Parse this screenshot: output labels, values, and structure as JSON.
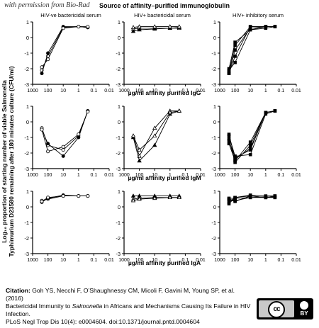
{
  "watermark": "with permission from Bio-Rad",
  "figure": {
    "super_title": "Source of  affinity–purified  immunoglobulin",
    "y_label_top": "Log₁₀ proportion of starting number of viable Salmonella",
    "y_label_bottom": "Typhimurium D23580 remaining after 180 minutes culture (CFU/ml)",
    "column_titles": [
      "HIV-ve bactericidal serum",
      "HIV+ bactericidal serum",
      "HIV+ inhibitory serum"
    ],
    "row_xlabels": [
      "µg/ml affinity purified IgG",
      "µg/ml affinity purified IgM",
      "µg/ml affinity purified IgA"
    ],
    "x_tick_labels": [
      "1000",
      "100",
      "10",
      "1",
      "0.1",
      "0.01"
    ],
    "y_tick_labels": [
      "1",
      "0",
      "-1",
      "-2",
      "-3"
    ]
  },
  "chart_data": {
    "type": "line",
    "x_scale": "log-reversed",
    "xlim": [
      1000,
      0.01
    ],
    "ylim": [
      -3,
      1
    ],
    "x": [
      250,
      100,
      10,
      1,
      0.25
    ],
    "panels": [
      {
        "row": 0,
        "col": 0,
        "marker": "circle",
        "series": [
          [
            -2.1,
            -1.2,
            0.65,
            0.7,
            0.65
          ],
          [
            -2.3,
            -1.0,
            0.7,
            0.7,
            0.65
          ],
          [
            -1.9,
            -1.4,
            0.6,
            0.7,
            0.7
          ]
        ]
      },
      {
        "row": 0,
        "col": 1,
        "marker": "triangle",
        "series": [
          [
            0.55,
            0.6,
            0.6,
            0.6,
            0.6
          ],
          [
            0.4,
            0.5,
            0.55,
            0.6,
            0.65
          ],
          [
            0.65,
            0.7,
            0.7,
            0.7,
            0.7
          ]
        ]
      },
      {
        "row": 0,
        "col": 2,
        "marker": "square",
        "series": [
          [
            -2.3,
            -1.2,
            0.7,
            0.7,
            0.7
          ],
          [
            -2.2,
            -0.5,
            0.7,
            0.7,
            0.7
          ],
          [
            -2.3,
            -0.8,
            0.6,
            0.7,
            0.7
          ],
          [
            -2.1,
            -1.6,
            0.5,
            0.7,
            0.7
          ],
          [
            -2.0,
            -0.3,
            0.5,
            0.6,
            0.7
          ]
        ]
      },
      {
        "row": 1,
        "col": 0,
        "marker": "circle",
        "series": [
          [
            -0.4,
            -1.5,
            -1.8,
            -0.9,
            0.7
          ],
          [
            -0.5,
            -1.4,
            -2.2,
            -1.0,
            0.7
          ],
          [
            -0.5,
            -1.9,
            -1.6,
            -0.8,
            0.65
          ]
        ]
      },
      {
        "row": 1,
        "col": 1,
        "marker": "triangle",
        "series": [
          [
            -0.9,
            -2.2,
            -0.4,
            0.7,
            0.7
          ],
          [
            -1.0,
            -2.5,
            -1.5,
            0.5,
            0.7
          ],
          [
            -0.9,
            -1.8,
            -0.9,
            0.6,
            0.7
          ]
        ]
      },
      {
        "row": 1,
        "col": 2,
        "marker": "square",
        "series": [
          [
            -0.8,
            -2.4,
            -1.7,
            0.6,
            0.7
          ],
          [
            -1.2,
            -2.3,
            -1.8,
            0.6,
            0.7
          ],
          [
            -1.4,
            -2.5,
            -1.3,
            0.6,
            0.7
          ],
          [
            -0.9,
            -2.2,
            -2.1,
            0.5,
            0.7
          ],
          [
            -1.1,
            -2.6,
            -1.5,
            0.6,
            0.7
          ]
        ]
      },
      {
        "row": 2,
        "col": 0,
        "marker": "circle",
        "series": [
          [
            0.4,
            0.5,
            0.7,
            0.7,
            0.7
          ],
          [
            0.3,
            0.55,
            0.75,
            0.7,
            0.7
          ],
          [
            0.35,
            0.6,
            0.7,
            0.7,
            0.7
          ]
        ]
      },
      {
        "row": 2,
        "col": 1,
        "marker": "triangle",
        "series": [
          [
            0.5,
            0.55,
            0.6,
            0.6,
            0.6
          ],
          [
            0.7,
            0.7,
            0.7,
            0.7,
            0.7
          ],
          [
            0.4,
            0.5,
            0.55,
            0.6,
            0.6
          ]
        ]
      },
      {
        "row": 2,
        "col": 2,
        "marker": "square",
        "series": [
          [
            0.5,
            0.4,
            0.6,
            0.6,
            0.6
          ],
          [
            0.3,
            0.6,
            0.7,
            0.6,
            0.7
          ],
          [
            0.55,
            0.55,
            0.6,
            0.65,
            0.6
          ],
          [
            0.45,
            0.35,
            0.7,
            0.6,
            0.65
          ],
          [
            0.2,
            0.6,
            0.75,
            0.7,
            0.7
          ]
        ]
      }
    ]
  },
  "citation": {
    "label": "Citation:",
    "line1": " Goh YS, Necchi F, O’Shaughnessy CM, Micoli F, Gavini M, Young SP, et al. (2016)",
    "line2a": "Bactericidal Immunity to ",
    "line2i": "Salmonella",
    "line2b": " in Africans and Mechanisms Causing Its Failure in HIV Infection.",
    "line3": "PLoS Negl Trop Dis 10(4): e0004604. doi:10.1371/journal.pntd.0004604"
  },
  "license": {
    "cc_text": "cc",
    "by_text": "BY"
  }
}
